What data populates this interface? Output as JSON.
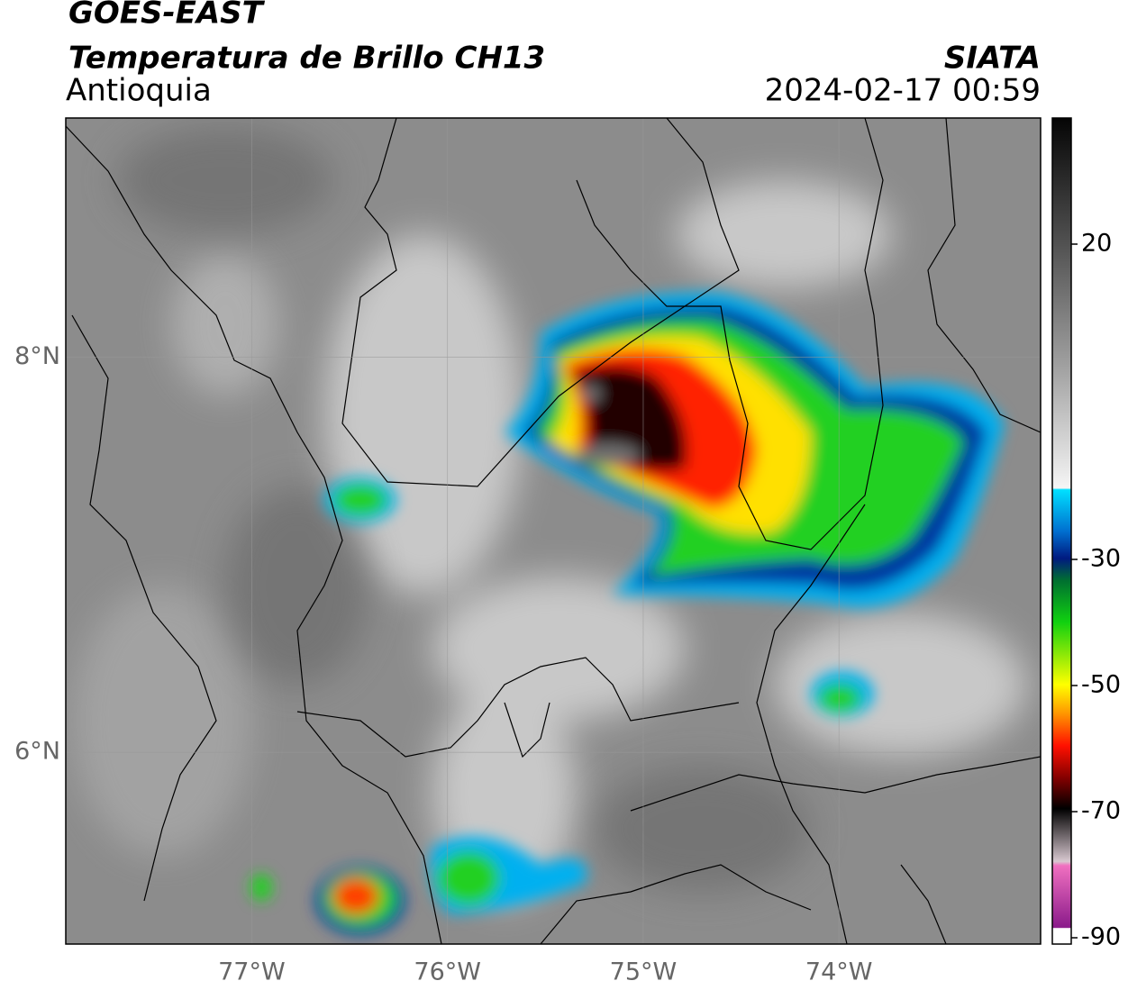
{
  "header": {
    "title": "GOES-EAST",
    "subtitle": "Temperatura de Brillo CH13",
    "region": "Antioquia",
    "source": "SIATA",
    "datetime": "2024-02-17 00:59"
  },
  "map": {
    "xlim": [
      -77.95,
      -72.97
    ],
    "ylim": [
      5.03,
      9.21
    ],
    "grid": true,
    "xticks": [
      {
        "value": -77,
        "label": "77°W"
      },
      {
        "value": -76,
        "label": "76°W"
      },
      {
        "value": -75,
        "label": "75°W"
      },
      {
        "value": -74,
        "label": "74°W"
      }
    ],
    "yticks": [
      {
        "value": 6,
        "label": "6°N"
      },
      {
        "value": 8,
        "label": "8°N"
      }
    ]
  },
  "colorbar": {
    "lim": [
      -91,
      40
    ],
    "ticks": [
      -90,
      -70,
      -50,
      -30,
      20
    ]
  }
}
